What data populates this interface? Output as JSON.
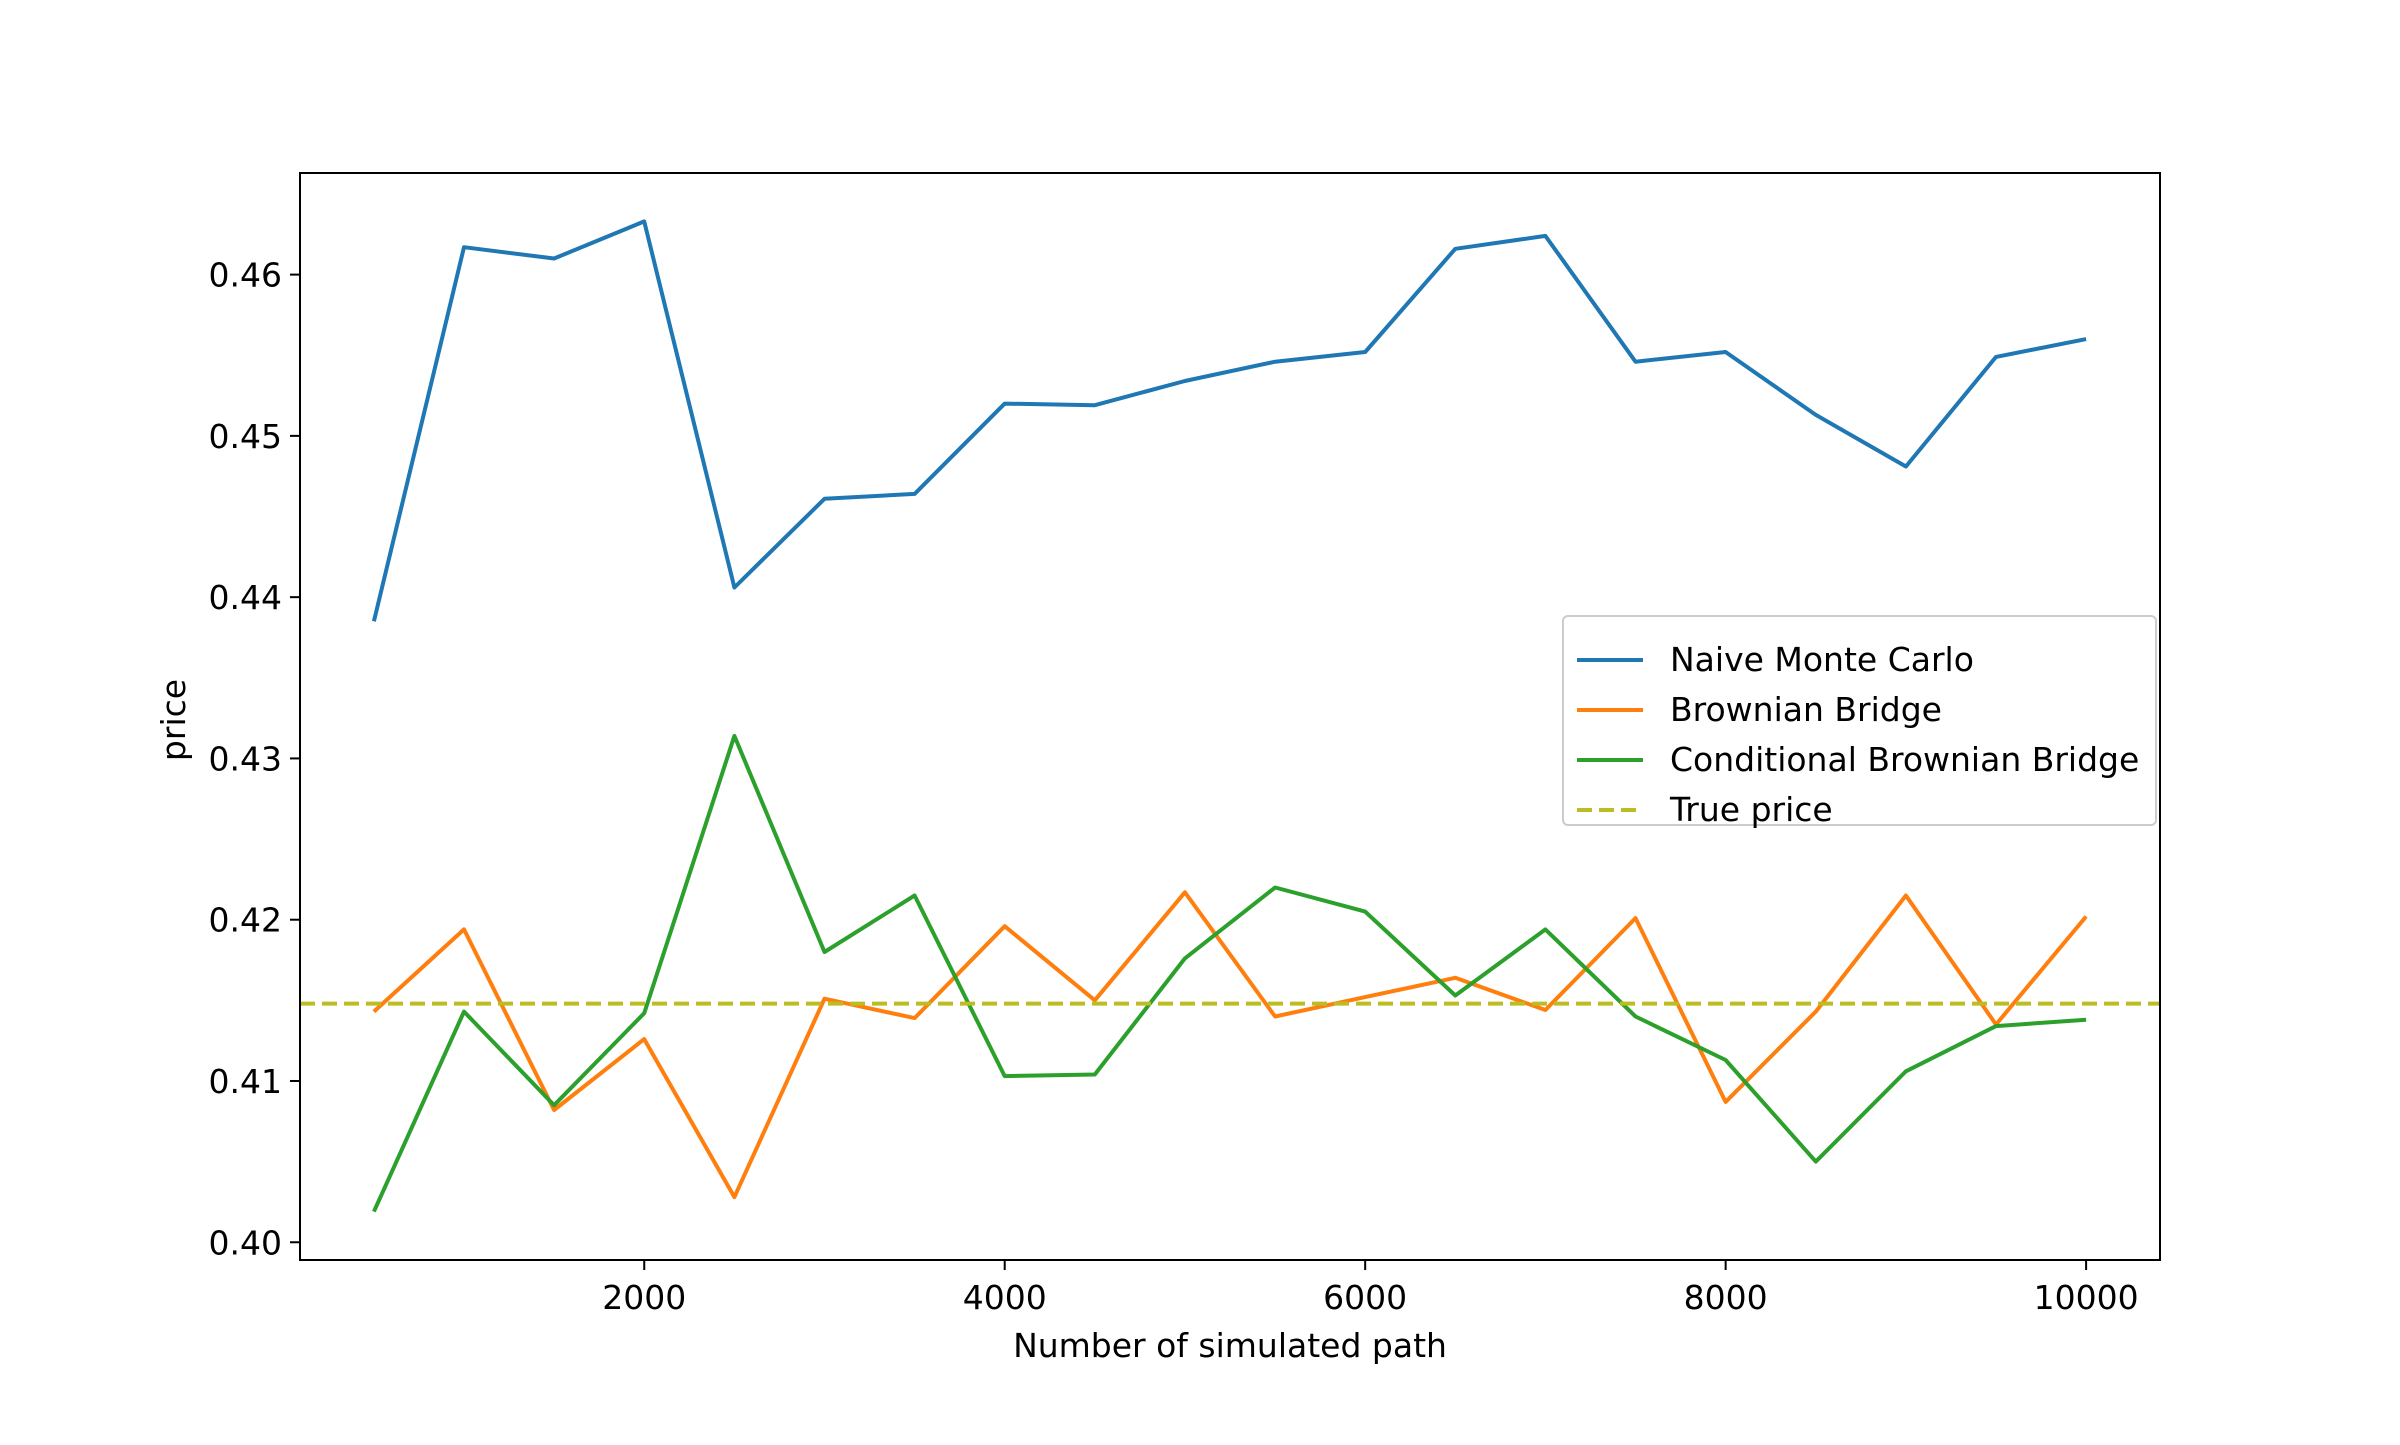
{
  "chart_data": {
    "type": "line",
    "title": "",
    "xlabel": "Number of simulated path",
    "ylabel": "price",
    "xlim": [
      90,
      10410
    ],
    "ylim": [
      0.3989,
      0.4663
    ],
    "xticks": [
      2000,
      4000,
      6000,
      8000,
      10000
    ],
    "xtick_labels": [
      "2000",
      "4000",
      "6000",
      "8000",
      "10000"
    ],
    "yticks": [
      0.4,
      0.41,
      0.42,
      0.43,
      0.44,
      0.45,
      0.46
    ],
    "ytick_labels": [
      "0.40",
      "0.41",
      "0.42",
      "0.43",
      "0.44",
      "0.45",
      "0.46"
    ],
    "grid": false,
    "legend_position": "center-right",
    "x": [
      500,
      1000,
      1500,
      2000,
      2500,
      3000,
      3500,
      4000,
      4500,
      5000,
      5500,
      6000,
      6500,
      7000,
      7500,
      8000,
      8500,
      9000,
      9500,
      10000
    ],
    "series": [
      {
        "name": "Naive Monte Carlo",
        "color": "#1f77b4",
        "style": "solid",
        "values": [
          0.4385,
          0.4617,
          0.461,
          0.4633,
          0.4406,
          0.4461,
          0.4464,
          0.452,
          0.4519,
          0.4534,
          0.4546,
          0.4552,
          0.4616,
          0.4624,
          0.4546,
          0.4552,
          0.4513,
          0.4481,
          0.4549,
          0.456
        ]
      },
      {
        "name": "Brownian Bridge",
        "color": "#ff7f0e",
        "style": "solid",
        "values": [
          0.4143,
          0.4194,
          0.4082,
          0.4126,
          0.4028,
          0.4151,
          0.4139,
          0.4196,
          0.415,
          0.4217,
          0.414,
          0.4152,
          0.4164,
          0.4144,
          0.4201,
          0.4087,
          0.4143,
          0.4215,
          0.4135,
          0.4202
        ]
      },
      {
        "name": "Conditional Brownian Bridge",
        "color": "#2ca02c",
        "style": "solid",
        "values": [
          0.4019,
          0.4143,
          0.4085,
          0.4142,
          0.4314,
          0.418,
          0.4215,
          0.4103,
          0.4104,
          0.4176,
          0.422,
          0.4205,
          0.4153,
          0.4194,
          0.414,
          0.4113,
          0.405,
          0.4106,
          0.4134,
          0.4138
        ]
      },
      {
        "name": "True price",
        "color": "#bcbd22",
        "style": "dashed",
        "constant": 0.4148
      }
    ]
  }
}
